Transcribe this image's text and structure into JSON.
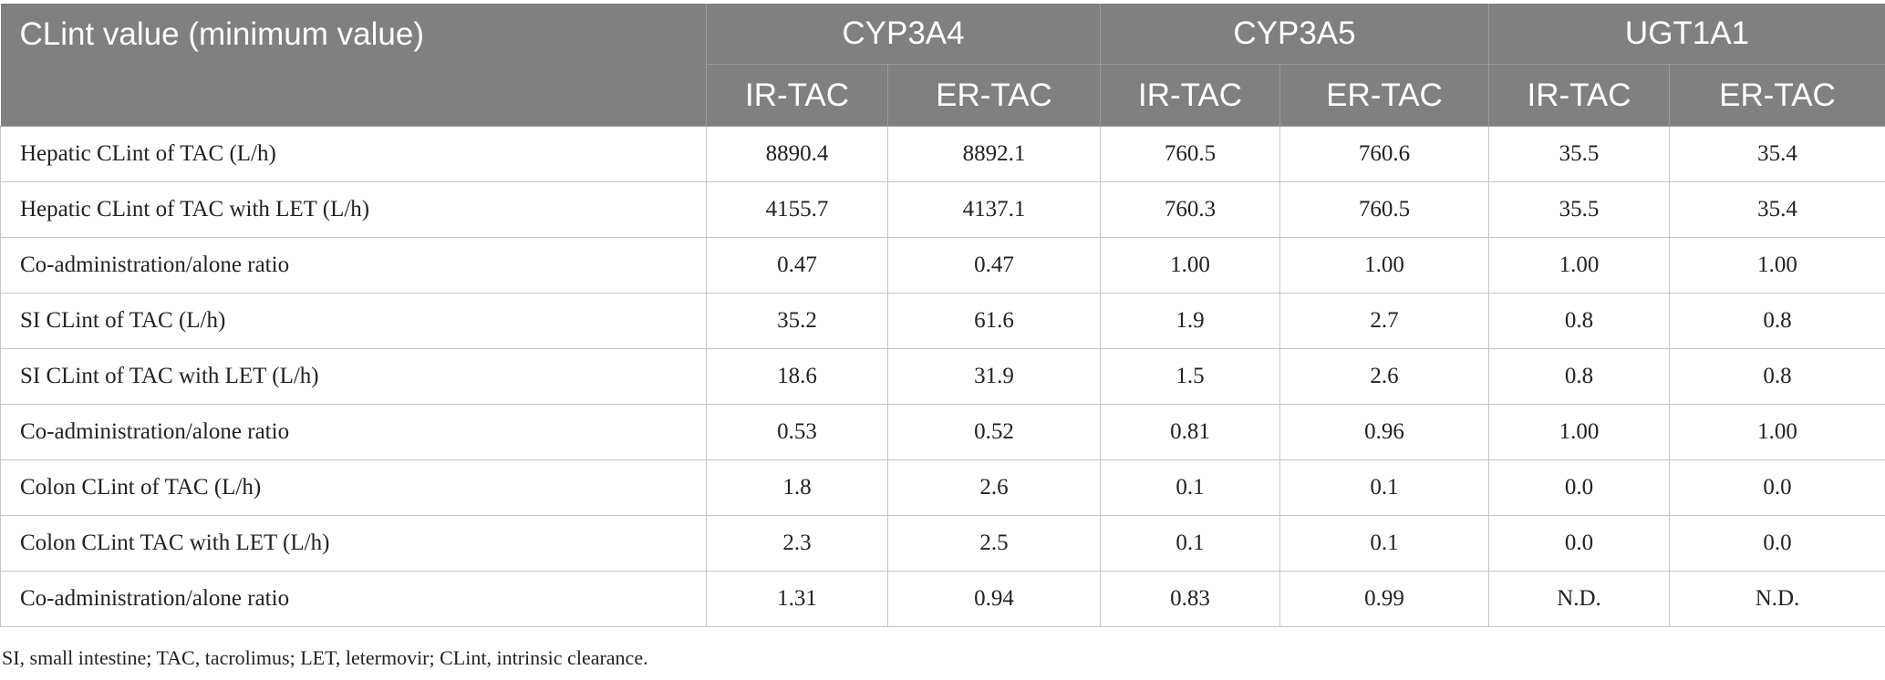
{
  "table": {
    "corner_label": "CLint value (minimum value)",
    "enzymes": [
      "CYP3A4",
      "CYP3A5",
      "UGT1A1"
    ],
    "formulations": [
      "IR-TAC",
      "ER-TAC",
      "IR-TAC",
      "ER-TAC",
      "IR-TAC",
      "ER-TAC"
    ],
    "rows": [
      {
        "label": "Hepatic CLint of TAC (L/h)",
        "values": [
          "8890.4",
          "8892.1",
          "760.5",
          "760.6",
          "35.5",
          "35.4"
        ]
      },
      {
        "label": "Hepatic CLint of TAC with LET (L/h)",
        "values": [
          "4155.7",
          "4137.1",
          "760.3",
          "760.5",
          "35.5",
          "35.4"
        ]
      },
      {
        "label": "Co-administration/alone ratio",
        "values": [
          "0.47",
          "0.47",
          "1.00",
          "1.00",
          "1.00",
          "1.00"
        ]
      },
      {
        "label": "SI CLint of TAC (L/h)",
        "values": [
          "35.2",
          "61.6",
          "1.9",
          "2.7",
          "0.8",
          "0.8"
        ]
      },
      {
        "label": "SI CLint of TAC with LET (L/h)",
        "values": [
          "18.6",
          "31.9",
          "1.5",
          "2.6",
          "0.8",
          "0.8"
        ]
      },
      {
        "label": "Co-administration/alone ratio",
        "values": [
          "0.53",
          "0.52",
          "0.81",
          "0.96",
          "1.00",
          "1.00"
        ]
      },
      {
        "label": "Colon CLint of TAC (L/h)",
        "values": [
          "1.8",
          "2.6",
          "0.1",
          "0.1",
          "0.0",
          "0.0"
        ]
      },
      {
        "label": "Colon CLint TAC with LET (L/h)",
        "values": [
          "2.3",
          "2.5",
          "0.1",
          "0.1",
          "0.0",
          "0.0"
        ]
      },
      {
        "label": "Co-administration/alone ratio",
        "values": [
          "1.31",
          "0.94",
          "0.83",
          "0.99",
          "N.D.",
          "N.D."
        ]
      }
    ]
  },
  "footnote": "SI, small intestine; TAC, tacrolimus; LET, letermovir; CLint, intrinsic clearance."
}
